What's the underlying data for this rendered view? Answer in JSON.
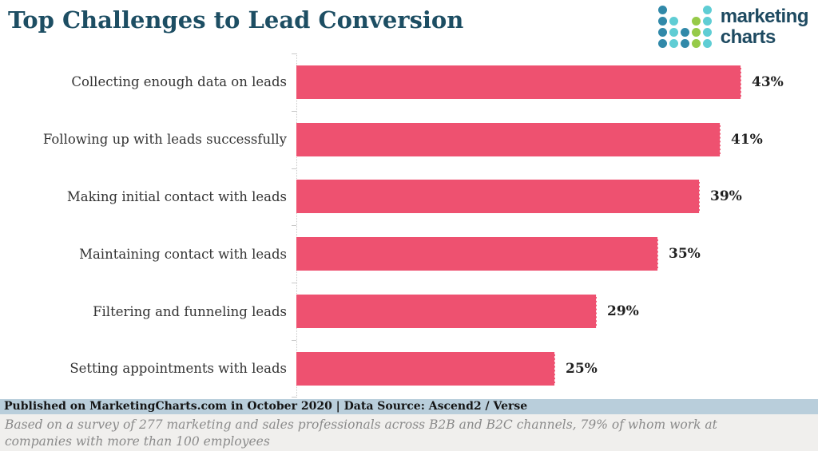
{
  "header": {
    "title": "Top Challenges to Lead Conversion"
  },
  "logo": {
    "line1": "marketing",
    "line2": "charts",
    "text_color": "#1e4a61",
    "dot_colors": {
      "blue": "#3189a9",
      "teal": "#5fcdd4",
      "green": "#96ca48"
    },
    "dots_grid": [
      [
        "blue",
        null,
        null,
        null,
        "teal"
      ],
      [
        "blue",
        "teal",
        null,
        "green",
        "teal"
      ],
      [
        "blue",
        "teal",
        "blue",
        "green",
        "teal"
      ],
      [
        "blue",
        "teal",
        "blue",
        "green",
        "teal"
      ]
    ]
  },
  "chart_data": {
    "type": "bar",
    "orientation": "horizontal",
    "title": "Top Challenges to Lead Conversion",
    "categories": [
      "Collecting enough data on leads",
      "Following up with leads successfully",
      "Making initial contact with leads",
      "Maintaining contact with leads",
      "Filtering and funneling leads",
      "Setting appointments with leads"
    ],
    "values": [
      43,
      41,
      39,
      35,
      29,
      25
    ],
    "value_labels": [
      "43%",
      "41%",
      "39%",
      "35%",
      "29%",
      "25%"
    ],
    "unit": "%",
    "xlim": [
      0,
      45
    ],
    "bar_color": "#ee5170",
    "grid": "dotted y-axis baseline only, tick marks at category boundaries",
    "legend": "none",
    "xlabel": "",
    "ylabel": ""
  },
  "colors": {
    "title": "#1d4e63",
    "category_label": "#333333",
    "value_label": "#222222"
  },
  "footer": {
    "published": "Published on MarketingCharts.com in October 2020 | Data Source: Ascend2 / Verse",
    "published_bg": "#b9cedb",
    "note": "Based on a survey of 277 marketing and sales professionals across B2B and B2C channels, 79% of whom work at companies with more than 100 employees",
    "note_bg": "#f0efed"
  }
}
